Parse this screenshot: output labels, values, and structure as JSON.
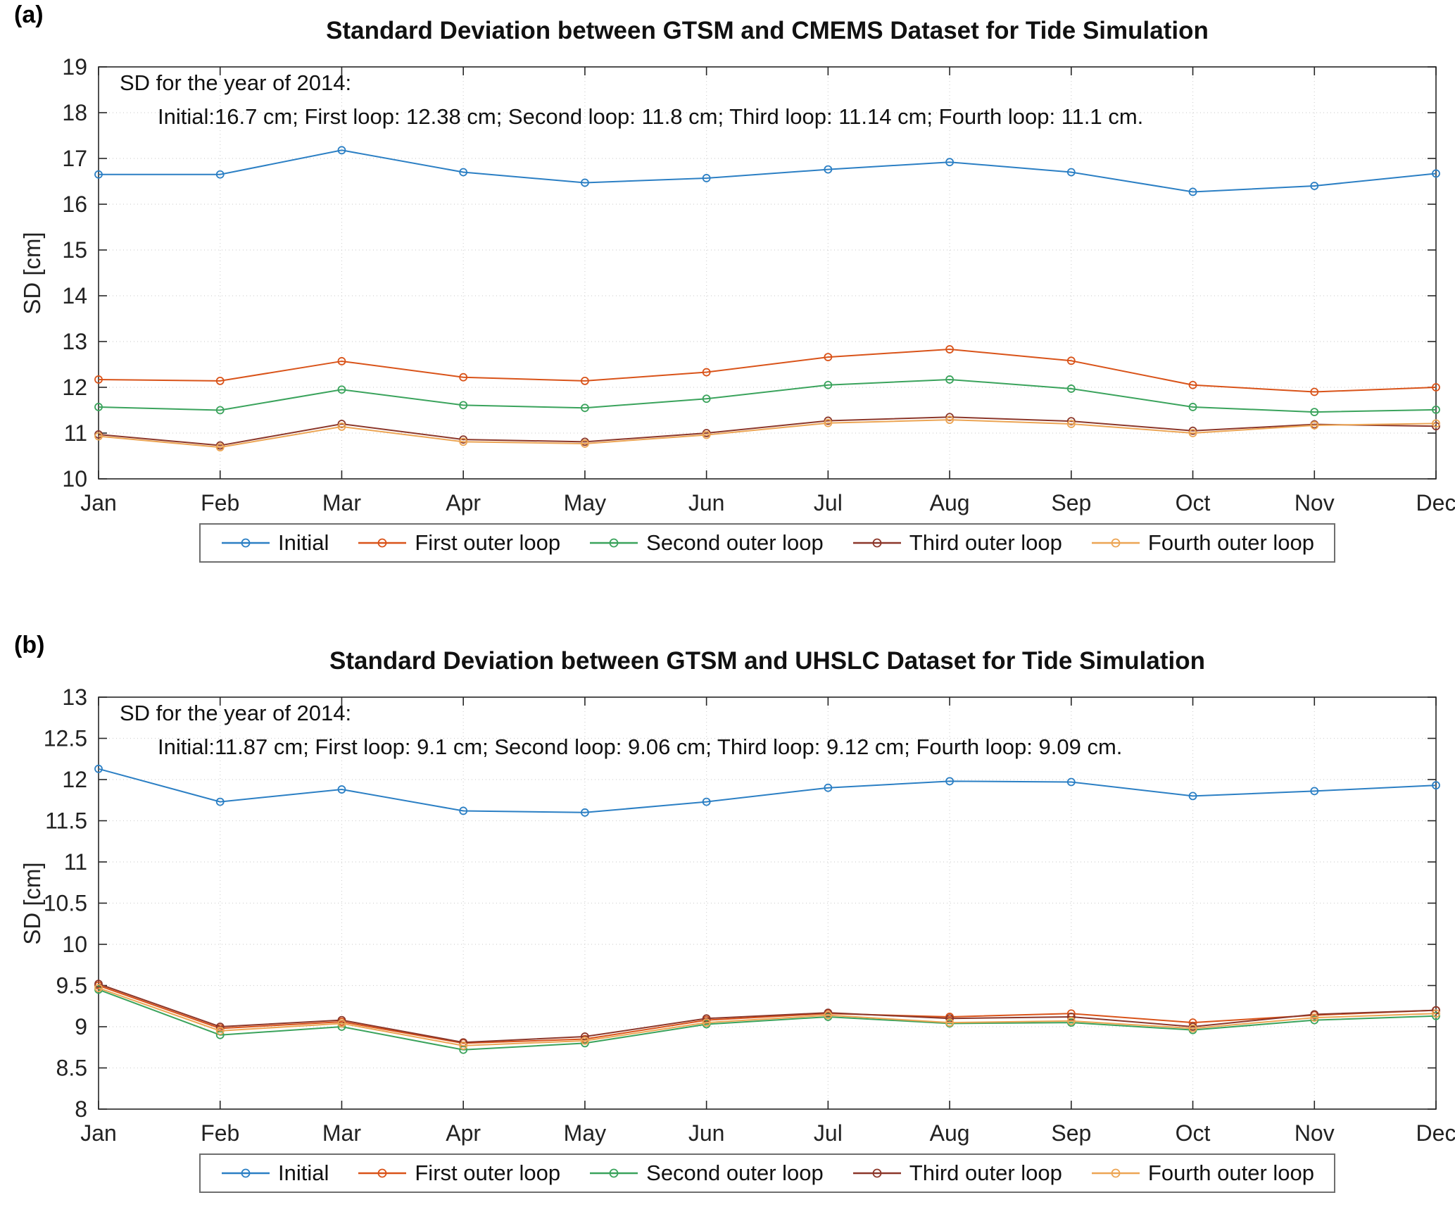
{
  "figure": {
    "background": "#ffffff",
    "axes_color": "#262626",
    "grid_color": "#d2d2d2"
  },
  "chart_data": [
    {
      "type": "line",
      "panel_label": "(a)",
      "title": "Standard Deviation between GTSM and CMEMS Dataset for Tide Simulation",
      "annotation": [
        "SD for the year of 2014:",
        "Initial:16.7 cm; First loop: 12.38 cm; Second loop: 11.8 cm; Third loop: 11.14 cm; Fourth loop: 11.1 cm."
      ],
      "xlabel": "",
      "ylabel": "SD [cm]",
      "ylim": [
        10,
        19
      ],
      "ytick_step": 1,
      "grid": true,
      "legend_position": "below",
      "categories": [
        "Jan",
        "Feb",
        "Mar",
        "Apr",
        "May",
        "Jun",
        "Jul",
        "Aug",
        "Sep",
        "Oct",
        "Nov",
        "Dec"
      ],
      "series": [
        {
          "name": "Initial",
          "color": "#2B7FC4",
          "values": [
            16.65,
            16.65,
            17.18,
            16.7,
            16.47,
            16.57,
            16.76,
            16.92,
            16.7,
            16.27,
            16.4,
            16.67
          ]
        },
        {
          "name": "First outer loop",
          "color": "#D95319",
          "values": [
            12.17,
            12.14,
            12.57,
            12.22,
            12.14,
            12.33,
            12.66,
            12.83,
            12.58,
            12.05,
            11.9,
            12.0
          ]
        },
        {
          "name": "Second outer loop",
          "color": "#3AA35C",
          "values": [
            11.57,
            11.5,
            11.95,
            11.61,
            11.55,
            11.75,
            12.05,
            12.17,
            11.97,
            11.57,
            11.46,
            11.51
          ]
        },
        {
          "name": "Third outer loop",
          "color": "#8C372A",
          "values": [
            10.97,
            10.73,
            11.2,
            10.86,
            10.81,
            11.0,
            11.27,
            11.35,
            11.26,
            11.05,
            11.19,
            11.15
          ]
        },
        {
          "name": "Fourth outer loop",
          "color": "#ECA554",
          "values": [
            10.93,
            10.69,
            11.14,
            10.81,
            10.77,
            10.96,
            11.22,
            11.29,
            11.2,
            11.0,
            11.17,
            11.21
          ]
        }
      ]
    },
    {
      "type": "line",
      "panel_label": "(b)",
      "title": "Standard Deviation between GTSM and UHSLC Dataset for Tide Simulation",
      "annotation": [
        "SD for the year of 2014:",
        "Initial:11.87 cm; First loop: 9.1 cm; Second loop: 9.06 cm; Third loop: 9.12 cm; Fourth loop: 9.09 cm."
      ],
      "xlabel": "",
      "ylabel": "SD [cm]",
      "ylim": [
        8,
        13
      ],
      "ytick_step": 0.5,
      "grid": true,
      "legend_position": "below",
      "categories": [
        "Jan",
        "Feb",
        "Mar",
        "Apr",
        "May",
        "Jun",
        "Jul",
        "Aug",
        "Sep",
        "Oct",
        "Nov",
        "Dec"
      ],
      "series": [
        {
          "name": "Initial",
          "color": "#2B7FC4",
          "values": [
            12.13,
            11.73,
            11.88,
            11.62,
            11.6,
            11.73,
            11.9,
            11.98,
            11.97,
            11.8,
            11.86,
            11.93
          ]
        },
        {
          "name": "First outer loop",
          "color": "#D95319",
          "values": [
            9.5,
            8.98,
            9.06,
            8.8,
            8.85,
            9.08,
            9.16,
            9.12,
            9.16,
            9.05,
            9.14,
            9.2
          ]
        },
        {
          "name": "Second outer loop",
          "color": "#3AA35C",
          "values": [
            9.45,
            8.9,
            9.0,
            8.72,
            8.8,
            9.03,
            9.12,
            9.04,
            9.05,
            8.96,
            9.08,
            9.13
          ]
        },
        {
          "name": "Third outer loop",
          "color": "#8C372A",
          "values": [
            9.52,
            9.0,
            9.08,
            8.81,
            8.88,
            9.1,
            9.17,
            9.1,
            9.12,
            9.0,
            9.15,
            9.2
          ]
        },
        {
          "name": "Fourth outer loop",
          "color": "#ECA554",
          "values": [
            9.47,
            8.95,
            9.04,
            8.77,
            8.83,
            9.05,
            9.14,
            9.05,
            9.07,
            8.98,
            9.11,
            9.16
          ]
        }
      ]
    }
  ],
  "legend_labels": [
    "Initial",
    "First outer loop",
    "Second outer loop",
    "Third outer loop",
    "Fourth outer loop"
  ]
}
